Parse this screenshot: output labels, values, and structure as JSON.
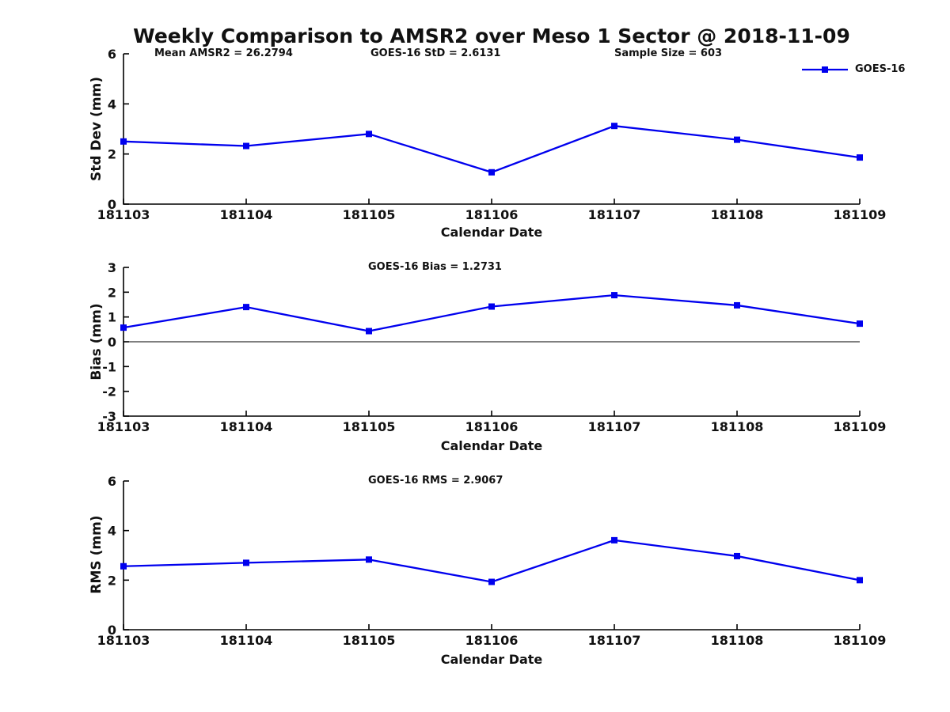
{
  "title": "Weekly Comparison to AMSR2 over Meso 1 Sector @ 2018-11-09",
  "legend": {
    "label": "GOES-16"
  },
  "colors": {
    "line": "#0000ee",
    "axis": "#000000",
    "text": "#111111"
  },
  "chart_data": [
    {
      "type": "line",
      "name": "std-dev",
      "categories": [
        "181103",
        "181104",
        "181105",
        "181106",
        "181107",
        "181108",
        "181109"
      ],
      "series": [
        {
          "name": "GOES-16",
          "values": [
            2.5,
            2.32,
            2.8,
            1.27,
            3.12,
            2.57,
            1.86
          ]
        }
      ],
      "xlabel": "Calendar Date",
      "ylabel": "Std Dev (mm)",
      "ylim": [
        0,
        6
      ],
      "yticks": [
        0,
        2,
        4,
        6
      ],
      "grid": false,
      "legend_position": "upper-right-outside",
      "annotations": [
        "Mean AMSR2 = 26.2794",
        "GOES-16 StD = 2.6131",
        "Sample Size = 603"
      ]
    },
    {
      "type": "line",
      "name": "bias",
      "categories": [
        "181103",
        "181104",
        "181105",
        "181106",
        "181107",
        "181108",
        "181109"
      ],
      "series": [
        {
          "name": "GOES-16",
          "values": [
            0.57,
            1.4,
            0.43,
            1.42,
            1.88,
            1.47,
            0.73
          ]
        }
      ],
      "xlabel": "Calendar Date",
      "ylabel": "Bias (mm)",
      "ylim": [
        -3,
        3
      ],
      "yticks": [
        -3,
        -2,
        -1,
        0,
        1,
        2,
        3
      ],
      "zero_line": true,
      "grid": false,
      "annotations": [
        "GOES-16 Bias  = 1.2731"
      ]
    },
    {
      "type": "line",
      "name": "rms",
      "categories": [
        "181103",
        "181104",
        "181105",
        "181106",
        "181107",
        "181108",
        "181109"
      ],
      "series": [
        {
          "name": "GOES-16",
          "values": [
            2.56,
            2.7,
            2.83,
            1.93,
            3.61,
            2.97,
            2.0
          ]
        }
      ],
      "xlabel": "Calendar Date",
      "ylabel": "RMS (mm)",
      "ylim": [
        0,
        6
      ],
      "yticks": [
        0,
        2,
        4,
        6
      ],
      "grid": false,
      "annotations": [
        "GOES-16 RMS = 2.9067"
      ]
    }
  ]
}
